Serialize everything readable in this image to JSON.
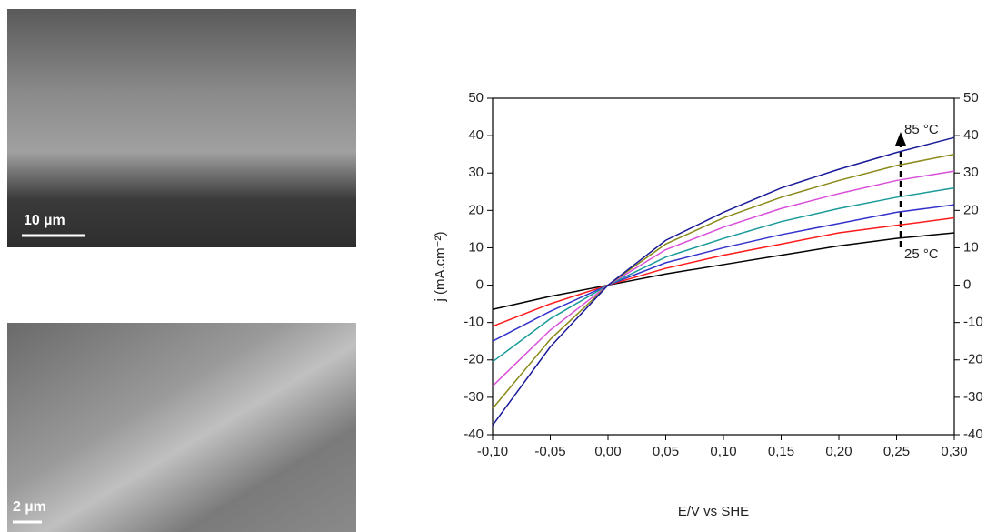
{
  "images": [
    {
      "scale_label": "10 µm"
    },
    {
      "scale_label": "2 µm"
    }
  ],
  "chart_data": {
    "type": "line",
    "xlabel": "E/V vs SHE",
    "ylabel": "j (mA.cm⁻²)",
    "x": [
      -0.1,
      -0.05,
      0.0,
      0.05,
      0.1,
      0.15,
      0.2,
      0.25,
      0.3
    ],
    "series": [
      {
        "color": "#000000",
        "values": [
          -6.5,
          -3,
          0,
          3,
          5.5,
          8,
          10.5,
          12.5,
          14
        ]
      },
      {
        "color": "#ff1a1a",
        "values": [
          -11,
          -5,
          0,
          4.5,
          8,
          11,
          14,
          16,
          18
        ]
      },
      {
        "color": "#3333cc",
        "values": [
          -15,
          -7,
          0,
          6,
          10,
          13.5,
          16.5,
          19.5,
          21.5
        ]
      },
      {
        "color": "#1a9a9a",
        "values": [
          -20.5,
          -9,
          0,
          7.5,
          12.5,
          17,
          20.5,
          23.5,
          26
        ]
      },
      {
        "color": "#d94fd9",
        "values": [
          -27,
          -12,
          0,
          9.5,
          15.5,
          20.5,
          24.5,
          28,
          30.5
        ]
      },
      {
        "color": "#8a8a1a",
        "values": [
          -33,
          -14.5,
          0,
          11,
          18,
          23.5,
          28,
          32,
          35
        ]
      },
      {
        "color": "#1a1a99",
        "values": [
          -37.5,
          -16.5,
          0,
          12,
          19.5,
          26,
          31,
          35.5,
          39.5
        ]
      }
    ],
    "xlim": [
      -0.1,
      0.3
    ],
    "xticks": [
      {
        "value": -0.1,
        "label": "-0,10"
      },
      {
        "value": -0.05,
        "label": "-0,05"
      },
      {
        "value": 0.0,
        "label": "0,00"
      },
      {
        "value": 0.05,
        "label": "0,05"
      },
      {
        "value": 0.1,
        "label": "0,10"
      },
      {
        "value": 0.15,
        "label": "0,15"
      },
      {
        "value": 0.2,
        "label": "0,20"
      },
      {
        "value": 0.25,
        "label": "0,25"
      },
      {
        "value": 0.3,
        "label": "0,30"
      }
    ],
    "ylim": [
      -40,
      50
    ],
    "yticks": [
      -40,
      -30,
      -20,
      -10,
      0,
      10,
      20,
      30,
      40,
      50
    ],
    "annotations": [
      "85 °C",
      "25 °C"
    ]
  }
}
